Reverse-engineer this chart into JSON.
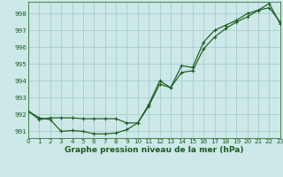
{
  "title": "Graphe pression niveau de la mer (hPa)",
  "background_color": "#cce8e8",
  "grid_color": "#aed0d0",
  "line_color": "#1a5c1a",
  "xlim": [
    0,
    23
  ],
  "ylim": [
    990.6,
    998.7
  ],
  "yticks": [
    991,
    992,
    993,
    994,
    995,
    996,
    997,
    998
  ],
  "xticks": [
    0,
    1,
    2,
    3,
    4,
    5,
    6,
    7,
    8,
    9,
    10,
    11,
    12,
    13,
    14,
    15,
    16,
    17,
    18,
    19,
    20,
    21,
    22,
    23
  ],
  "series1_x": [
    0,
    1,
    2,
    3,
    4,
    5,
    6,
    7,
    8,
    9,
    10,
    11,
    12,
    13,
    14,
    15,
    16,
    17,
    18,
    19,
    20,
    21,
    22,
    23
  ],
  "series1_y": [
    992.2,
    991.8,
    991.7,
    991.0,
    991.05,
    991.0,
    990.85,
    990.85,
    990.9,
    991.1,
    991.5,
    992.5,
    993.8,
    993.6,
    994.5,
    994.6,
    995.9,
    996.6,
    997.1,
    997.5,
    997.8,
    998.2,
    998.35,
    997.5
  ],
  "series2_x": [
    0,
    1,
    2,
    3,
    4,
    5,
    6,
    7,
    8,
    9,
    10,
    11,
    12,
    13,
    14,
    15,
    16,
    17,
    18,
    19,
    20,
    21,
    22,
    23
  ],
  "series2_y": [
    992.2,
    991.7,
    991.8,
    991.8,
    991.8,
    991.75,
    991.75,
    991.75,
    991.75,
    991.5,
    991.5,
    992.6,
    994.0,
    993.6,
    994.9,
    994.8,
    996.3,
    997.0,
    997.3,
    997.6,
    998.0,
    998.2,
    998.6,
    997.4
  ],
  "xlabel_fontsize": 6.5,
  "tick_fontsize": 5.2
}
